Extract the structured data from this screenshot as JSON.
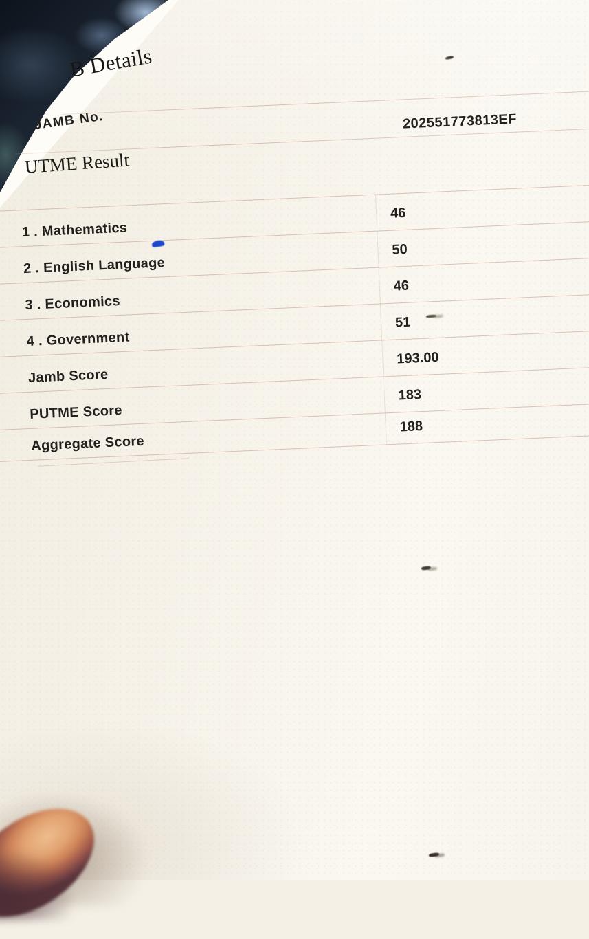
{
  "document": {
    "title_visible": "B Details",
    "jamb_no": {
      "label": "JAMB No.",
      "value": "202551773813EF"
    },
    "section_heading": "UTME Result",
    "result_rows": [
      {
        "label": "1 . Mathematics",
        "value": "46"
      },
      {
        "label": "2 . English Language",
        "value": "50"
      },
      {
        "label": "3 . Economics",
        "value": "46"
      },
      {
        "label": "4 . Government",
        "value": "51"
      },
      {
        "label": "Jamb Score",
        "value": "193.00"
      },
      {
        "label": "PUTME Score",
        "value": "183"
      },
      {
        "label": "Aggregate Score",
        "value": "188"
      }
    ]
  },
  "colors": {
    "paper": "#f6f2e9",
    "rule_line": "#be8c78",
    "text": "#23211e",
    "dark_corner": "#1c2633",
    "ink_mark_blue": "#1c49cf",
    "finger_skin": "#e2a271"
  }
}
